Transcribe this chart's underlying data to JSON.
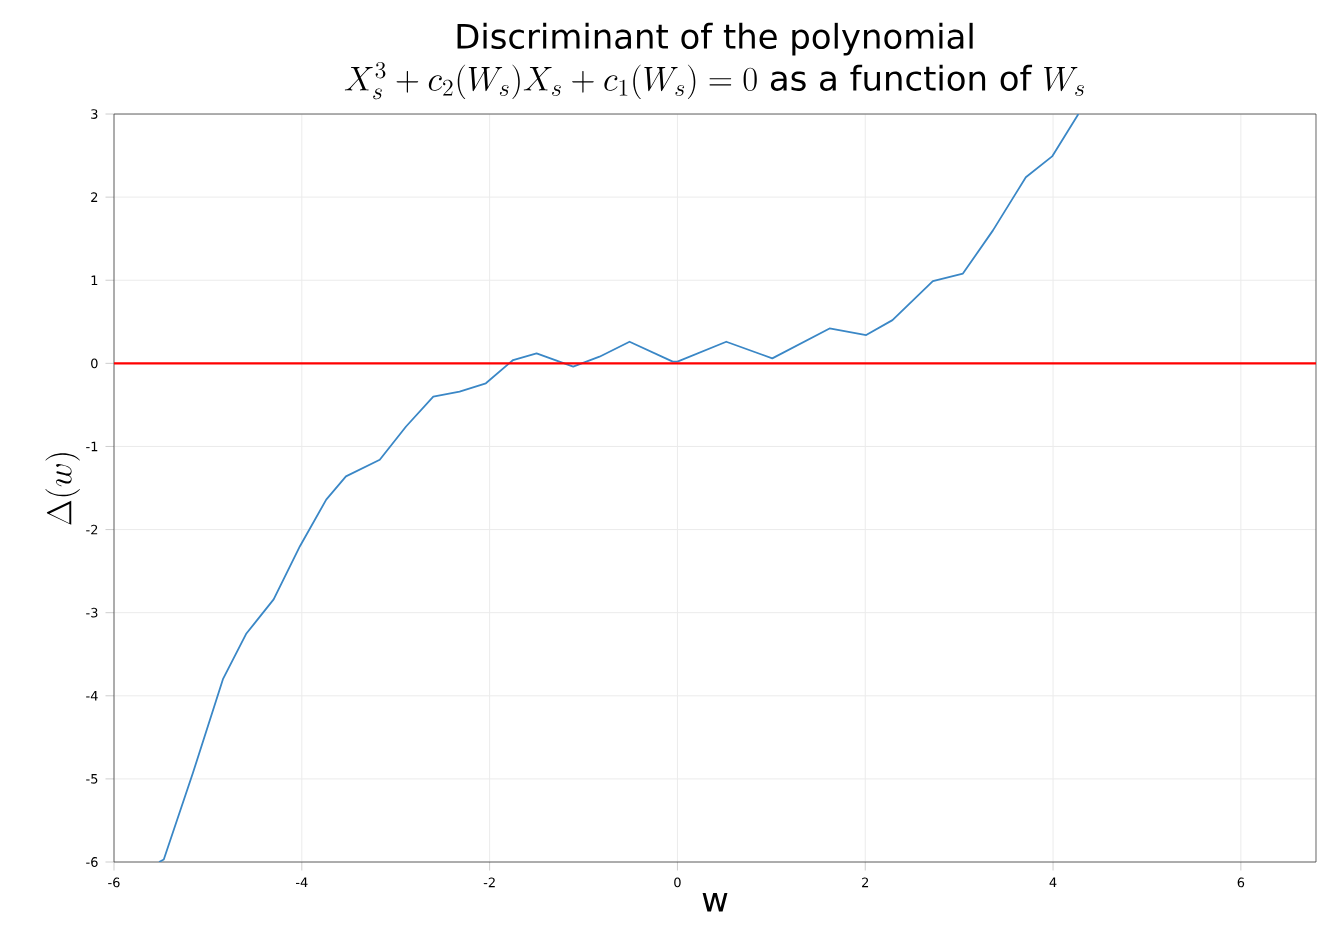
{
  "chart_data": {
    "type": "line",
    "title": "Discriminant of the polynomial",
    "subtitle": "X_s^3 + c_2(W_s)X_s + c_1(W_s) = 0 \\mathrm{\\ as\\ a\\ function\\ of\\ } W_s",
    "xlabel": "w",
    "ylabel": "\\Delta(w)",
    "series": [
      {
        "color": "#3a87c6",
        "x": [
          -5.52,
          -5.47,
          -5.16,
          -4.84,
          -4.59,
          -4.3,
          -4.02,
          -3.74,
          -3.53,
          -3.17,
          -2.89,
          -2.6,
          -2.32,
          -2.04,
          -1.75,
          -1.5,
          -1.11,
          -0.83,
          -0.51,
          -0.05,
          0.0,
          0.52,
          1.01,
          1.62,
          2.01,
          2.29,
          2.72,
          3.04,
          3.36,
          3.71,
          3.99,
          4.27
        ],
        "values": [
          -6.0,
          -5.97,
          -4.93,
          -3.8,
          -3.25,
          -2.84,
          -2.2,
          -1.64,
          -1.36,
          -1.16,
          -0.76,
          -0.4,
          -0.34,
          -0.24,
          0.04,
          0.12,
          -0.04,
          0.08,
          0.26,
          0.02,
          0.02,
          0.26,
          0.06,
          0.42,
          0.34,
          0.52,
          0.99,
          1.08,
          1.6,
          2.24,
          2.49,
          3.0
        ]
      }
    ],
    "xlim": [
      -6,
      6.8
    ],
    "ylim": [
      -6,
      3
    ],
    "xticks": [
      -6,
      -4,
      -2,
      0,
      2,
      4,
      6
    ],
    "yticks": [
      -6,
      -5,
      -4,
      -3,
      -2,
      -1,
      0,
      1,
      2,
      3
    ],
    "grid": true,
    "ref_lines": [
      {
        "axis": "y",
        "value": 0,
        "color": "#ff0000"
      }
    ]
  }
}
